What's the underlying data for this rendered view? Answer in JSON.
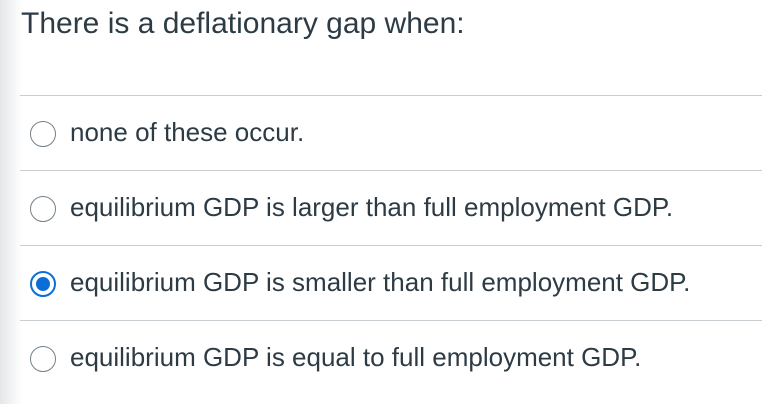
{
  "question": {
    "text": "There is a deflationary gap when:"
  },
  "answers": [
    {
      "label": "none of these occur.",
      "selected": false
    },
    {
      "label": "equilibrium GDP is larger than full employment GDP.",
      "selected": false
    },
    {
      "label": "equilibrium GDP is smaller than full employment GDP.",
      "selected": true
    },
    {
      "label": "equilibrium GDP is equal to full employment GDP.",
      "selected": false
    }
  ],
  "colors": {
    "accent": "#0b6ed8",
    "text": "#2d3b45",
    "divider": "#c7cdd1"
  }
}
